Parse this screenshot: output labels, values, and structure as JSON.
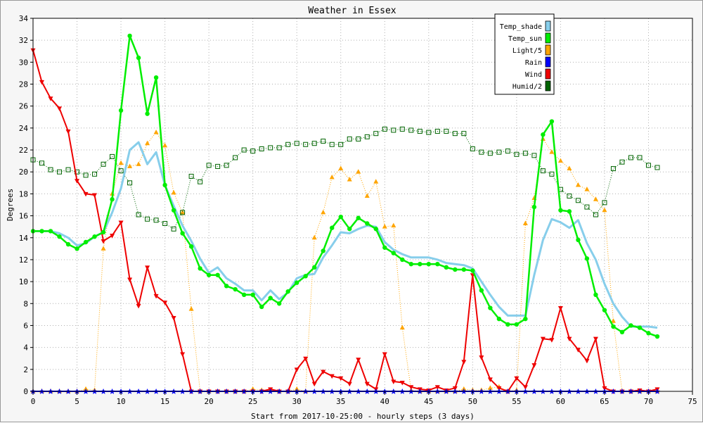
{
  "chart_data": {
    "type": "line",
    "title": "Weather in Essex",
    "xlabel": "Start from 2017-10-25:00 - hourly steps (3 days)",
    "ylabel": "Degrees",
    "xlim": [
      0,
      75
    ],
    "ylim": [
      0,
      34
    ],
    "xticks": [
      0,
      5,
      10,
      15,
      20,
      25,
      30,
      35,
      40,
      45,
      50,
      55,
      60,
      65,
      70,
      75
    ],
    "yticks": [
      0,
      2,
      4,
      6,
      8,
      10,
      12,
      14,
      16,
      18,
      20,
      22,
      24,
      26,
      28,
      30,
      32,
      34
    ],
    "grid": true,
    "legend_position": "top-right",
    "series": [
      {
        "name": "Temp_shade",
        "color": "#87ceeb",
        "marker": "none",
        "values": [
          14.6,
          14.6,
          14.6,
          14.4,
          14.0,
          13.3,
          13.5,
          14.1,
          14.5,
          16.3,
          18.5,
          22.0,
          22.7,
          20.7,
          21.8,
          18.8,
          16.9,
          15.1,
          13.7,
          12.1,
          10.8,
          11.3,
          10.3,
          9.8,
          9.2,
          9.2,
          8.3,
          9.2,
          8.4,
          9.0,
          10.3,
          10.6,
          10.7,
          12.2,
          13.3,
          14.5,
          14.4,
          14.8,
          15.1,
          15.0,
          13.6,
          12.9,
          12.5,
          12.2,
          12.2,
          12.2,
          12.0,
          11.7,
          11.6,
          11.5,
          11.2,
          10.0,
          8.8,
          7.7,
          6.9,
          6.9,
          6.9,
          10.6,
          13.8,
          15.7,
          15.4,
          14.9,
          15.6,
          13.5,
          12.0,
          9.8,
          8.0,
          6.8,
          5.9,
          5.9,
          5.9,
          5.8
        ]
      },
      {
        "name": "Temp_sun",
        "color": "#00ee00",
        "marker": "circle",
        "values": [
          14.6,
          14.6,
          14.6,
          14.1,
          13.4,
          13.0,
          13.6,
          14.1,
          14.5,
          17.5,
          25.6,
          32.4,
          30.4,
          25.3,
          28.6,
          18.8,
          16.5,
          14.4,
          13.2,
          11.2,
          10.6,
          10.6,
          9.6,
          9.3,
          8.8,
          8.8,
          7.7,
          8.5,
          8.0,
          9.1,
          9.9,
          10.5,
          11.3,
          12.8,
          14.9,
          15.9,
          14.8,
          15.8,
          15.3,
          14.8,
          13.1,
          12.6,
          12.0,
          11.6,
          11.6,
          11.6,
          11.6,
          11.3,
          11.1,
          11.1,
          11.0,
          9.2,
          7.6,
          6.6,
          6.1,
          6.1,
          6.6,
          16.8,
          23.4,
          24.6,
          16.5,
          16.4,
          13.8,
          12.1,
          8.8,
          7.4,
          5.9,
          5.4,
          6.0,
          5.8,
          5.3,
          5.0
        ]
      },
      {
        "name": "Light/5",
        "color": "#ffa500",
        "marker": "triangle-up",
        "values": [
          0,
          0,
          0,
          0,
          0,
          0,
          0.2,
          0.1,
          13.0,
          18.0,
          20.8,
          20.5,
          20.7,
          22.6,
          23.6,
          22.4,
          18.1,
          16.3,
          7.5,
          0,
          0,
          0,
          0,
          0,
          0,
          0.2,
          0.1,
          0.1,
          0,
          0,
          0.2,
          0,
          14.0,
          16.3,
          19.5,
          20.3,
          19.3,
          20.0,
          17.8,
          19.1,
          15.0,
          15.1,
          5.8,
          0.1,
          0,
          0,
          0,
          0,
          0,
          0.2,
          0.1,
          0.1,
          0.3,
          0.4,
          0,
          0.1,
          15.3,
          17.6,
          23.0,
          21.8,
          21.0,
          20.3,
          18.8,
          18.4,
          17.5,
          16.5,
          6.4,
          0,
          0,
          0,
          0,
          0
        ]
      },
      {
        "name": "Rain",
        "color": "#0000ff",
        "marker": "star",
        "values": [
          0,
          0,
          0,
          0,
          0,
          0,
          0,
          0,
          0,
          0,
          0,
          0,
          0,
          0,
          0,
          0,
          0,
          0,
          0,
          0,
          0,
          0,
          0,
          0,
          0,
          0,
          0,
          0,
          0,
          0,
          0,
          0,
          0,
          0,
          0,
          0,
          0,
          0,
          0,
          0,
          0,
          0,
          0,
          0,
          0,
          0,
          0,
          0,
          0,
          0,
          0,
          0,
          0,
          0,
          0,
          0,
          0,
          0,
          0,
          0,
          0,
          0,
          0,
          0,
          0,
          0,
          0,
          0,
          0,
          0,
          0,
          0
        ]
      },
      {
        "name": "Wind",
        "color": "#ee0000",
        "marker": "triangle-down",
        "values": [
          31.1,
          28.2,
          26.7,
          25.8,
          23.7,
          19.2,
          18.0,
          17.9,
          13.7,
          14.2,
          15.4,
          10.2,
          7.8,
          11.3,
          8.7,
          8.1,
          6.7,
          3.4,
          0,
          0,
          0,
          0,
          0,
          0,
          0,
          0,
          0,
          0.2,
          0,
          0,
          2.0,
          3.0,
          0.7,
          1.8,
          1.4,
          1.2,
          0.7,
          2.9,
          0.7,
          0.2,
          3.4,
          0.9,
          0.8,
          0.4,
          0.2,
          0.1,
          0.4,
          0.1,
          0.3,
          2.7,
          10.6,
          3.1,
          1.1,
          0.3,
          0,
          1.2,
          0.4,
          2.4,
          4.8,
          4.7,
          7.6,
          4.8,
          3.8,
          2.8,
          4.8,
          0.3,
          0,
          0,
          0,
          0.1,
          0,
          0.2
        ]
      },
      {
        "name": "Humid/2",
        "color": "#006400",
        "marker": "square",
        "values": [
          21.1,
          20.8,
          20.2,
          20.0,
          20.2,
          20.0,
          19.7,
          19.8,
          20.7,
          21.4,
          20.1,
          19.0,
          16.1,
          15.7,
          15.6,
          15.3,
          14.8,
          16.3,
          19.6,
          19.1,
          20.6,
          20.5,
          20.6,
          21.3,
          22.0,
          21.9,
          22.1,
          22.2,
          22.2,
          22.5,
          22.6,
          22.5,
          22.6,
          22.8,
          22.5,
          22.5,
          23.0,
          23.0,
          23.2,
          23.5,
          23.9,
          23.8,
          23.9,
          23.8,
          23.7,
          23.6,
          23.7,
          23.7,
          23.5,
          23.5,
          22.1,
          21.8,
          21.7,
          21.8,
          21.9,
          21.6,
          21.7,
          21.5,
          20.1,
          19.8,
          18.4,
          17.8,
          17.4,
          16.8,
          16.1,
          17.2,
          20.3,
          20.9,
          21.3,
          21.3,
          20.6,
          20.4
        ]
      }
    ]
  }
}
